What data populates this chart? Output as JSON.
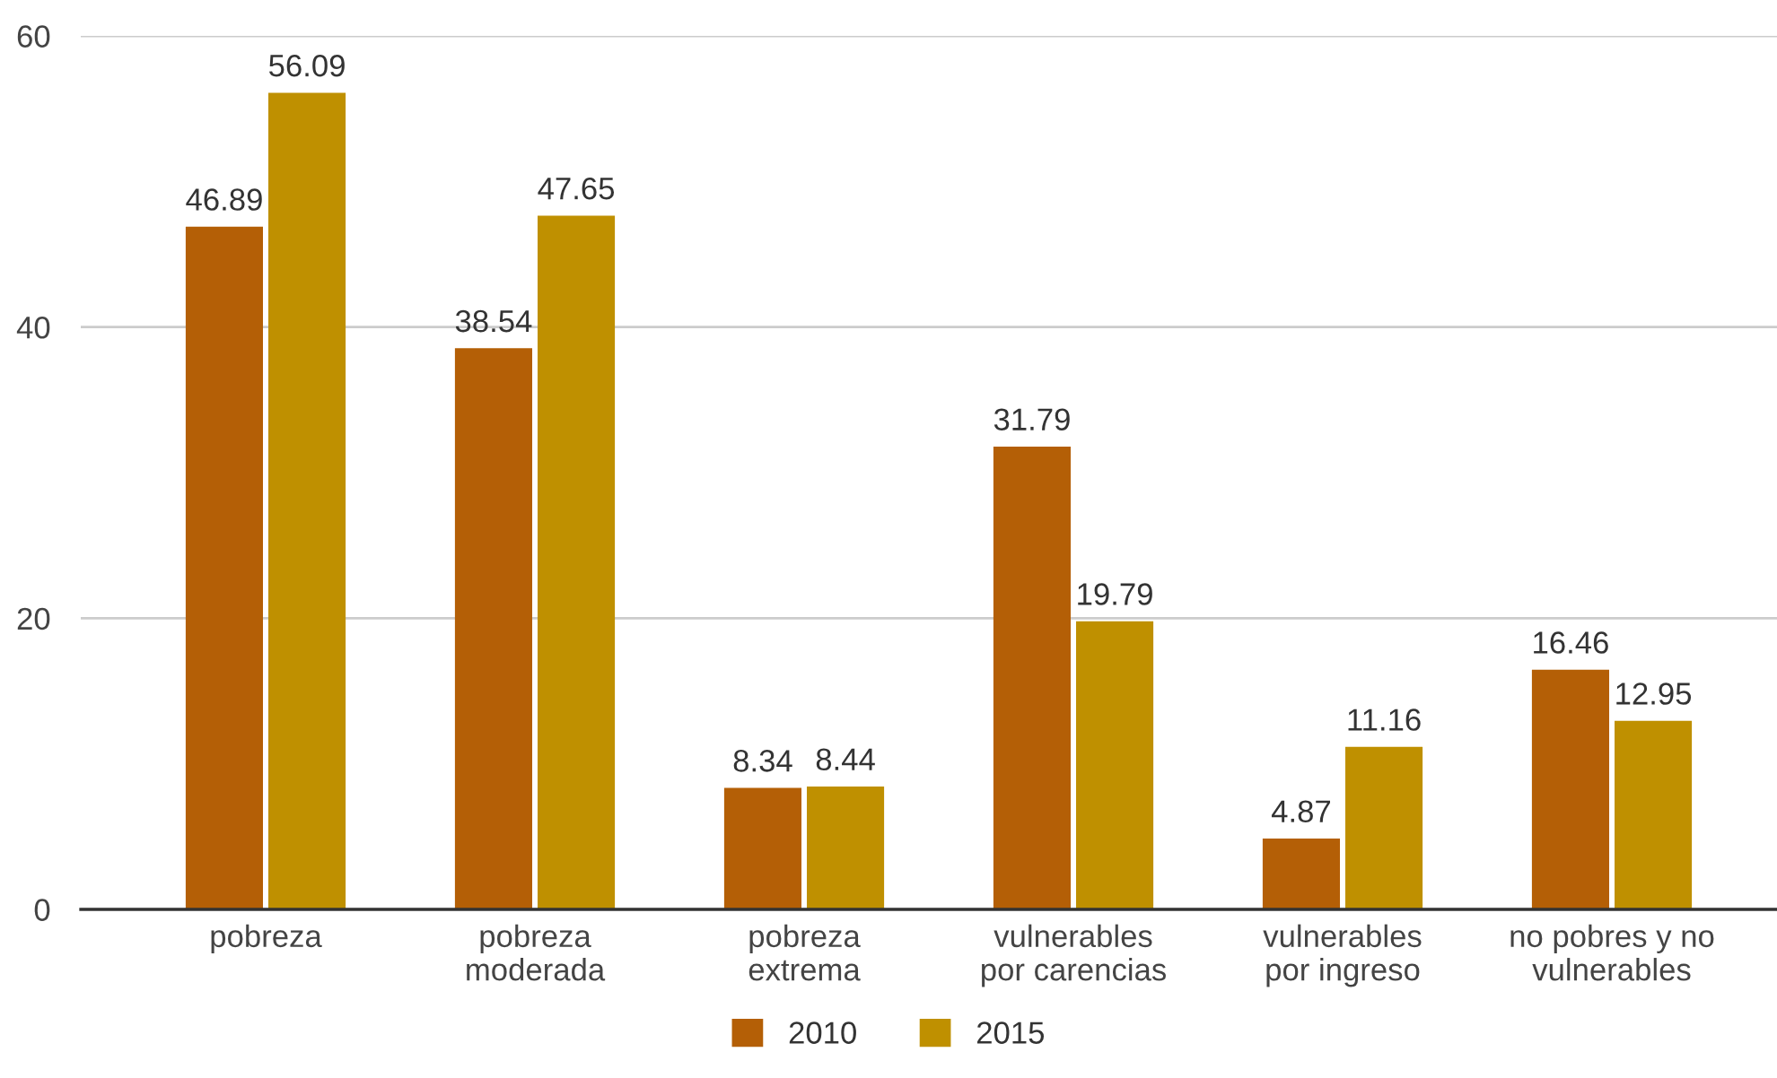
{
  "chart_data": {
    "type": "bar",
    "categories": [
      "pobreza",
      "pobreza\nmoderada",
      "pobreza\nextrema",
      "vulnerables\npor carencias",
      "vulnerables\npor ingreso",
      "no pobres y no\nvulnerables"
    ],
    "series": [
      {
        "name": "2010",
        "color": "#b45f06",
        "values": [
          46.89,
          38.54,
          8.34,
          31.79,
          4.87,
          16.46
        ]
      },
      {
        "name": "2015",
        "color": "#bf9000",
        "values": [
          56.09,
          47.65,
          8.44,
          19.79,
          11.16,
          12.95
        ]
      }
    ],
    "ylim": [
      0,
      60
    ],
    "yticks": [
      0,
      20,
      40,
      60
    ],
    "grid": "y",
    "legend": "bottom",
    "data_labels": true
  }
}
